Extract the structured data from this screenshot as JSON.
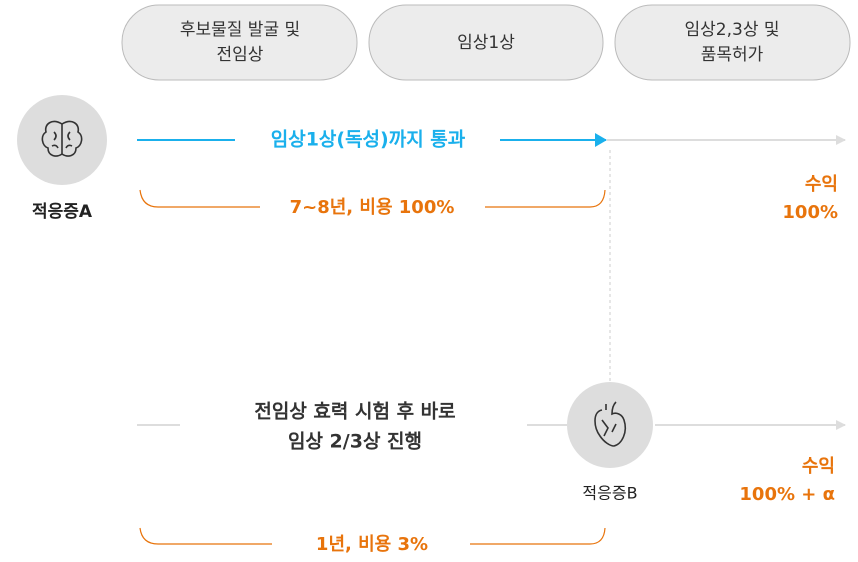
{
  "stages": [
    {
      "lines": [
        "후보물질 발굴 및",
        "전임상"
      ]
    },
    {
      "lines": [
        "임상1상"
      ]
    },
    {
      "lines": [
        "임상2,3상 및",
        "품목허가"
      ]
    }
  ],
  "indication_a": {
    "label": "적응증A",
    "arrow_label": "임상1상(독성)까지 통과",
    "duration": "7~8년, 비용 100%",
    "revenue": [
      "수익",
      "100%"
    ]
  },
  "indication_b": {
    "label": "적응증B",
    "description": [
      "전임상 효력 시험 후 바로",
      "임상 2/3상 진행"
    ],
    "duration": "1년, 비용 3%",
    "revenue": [
      "수익",
      "100% + α"
    ]
  }
}
